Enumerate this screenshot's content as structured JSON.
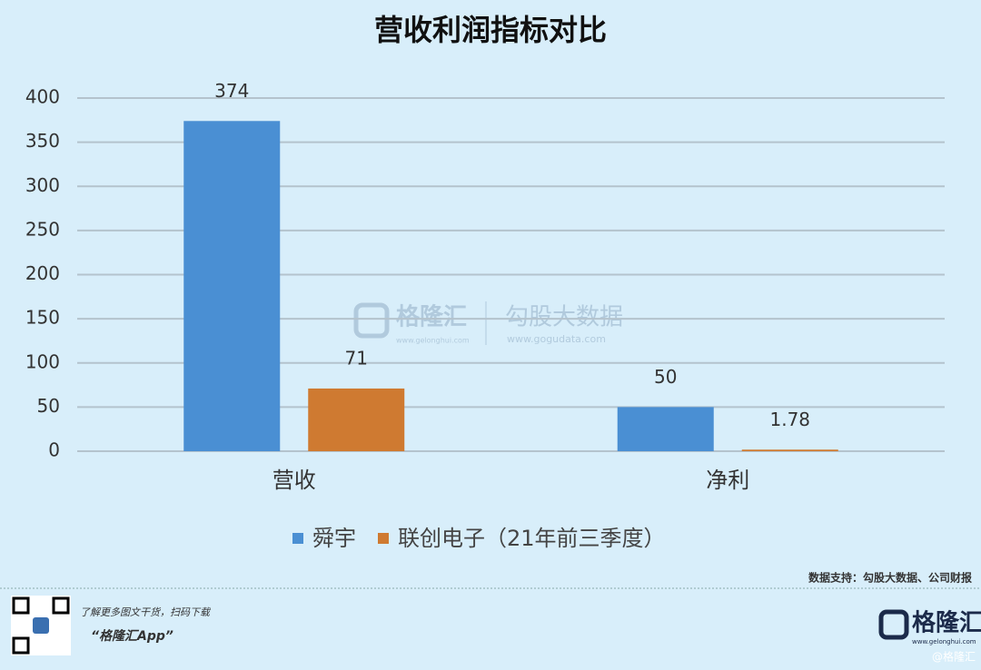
{
  "chart_data": {
    "type": "bar",
    "title": "营收利润指标对比",
    "categories": [
      "营收",
      "净利"
    ],
    "series": [
      {
        "name": "舜宇",
        "color": "#4a8fd3",
        "values": [
          374,
          50
        ]
      },
      {
        "name": "联创电子（21年前三季度）",
        "color": "#cf7a31",
        "values": [
          71,
          1.78
        ]
      }
    ],
    "ylim": [
      0,
      400
    ],
    "yticks": [
      0,
      50,
      100,
      150,
      200,
      250,
      300,
      350,
      400
    ],
    "grid": true,
    "legend": "bottom"
  },
  "watermark": {
    "brand": "格隆汇",
    "brand_url": "www.gelonghui.com",
    "partner": "勾股大数据",
    "partner_url": "www.gogudata.com"
  },
  "footer": {
    "source": "数据支持：勾股大数据、公司财报",
    "promo": "了解更多图文干货，扫码下载",
    "app": "“格隆汇App”",
    "logo": "格隆汇",
    "logo_url": "www.gelonghui.com",
    "credit": "@格隆汇"
  }
}
